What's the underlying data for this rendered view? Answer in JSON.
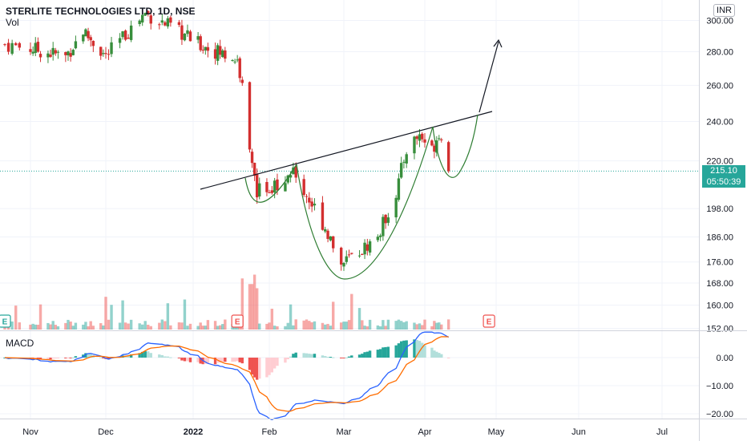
{
  "header": {
    "title": "STERLITE TECHNOLOGIES LTD, 1D, NSE",
    "volume_label": "Vol",
    "macd_label": "MACD",
    "currency": "INR"
  },
  "price_badge": {
    "price": "215.10",
    "countdown": "05:50:39",
    "color": "#26a69a"
  },
  "colors": {
    "up": "#26a69a",
    "down": "#ef5350",
    "up_candle": "#388e3c",
    "down_candle": "#d32f2f",
    "macd_line": "#2962ff",
    "signal_line": "#ff6d00",
    "drawing": "#2e7d32",
    "trendline": "#131722",
    "grid": "#f0f3fa"
  },
  "event_markers": [
    {
      "label": "E",
      "date": "2021-10-25",
      "color": "#26a69a"
    },
    {
      "label": "E",
      "date": "2022-01-19",
      "color": "#ef5350"
    },
    {
      "label": "E",
      "date": "2022-04-28",
      "color": "#ef5350"
    }
  ],
  "chart_data": [
    {
      "type": "candlestick",
      "panel": "price",
      "scale": "log",
      "y_ticks": [
        300,
        280,
        260,
        240,
        220,
        198,
        186,
        176,
        168,
        160,
        152
      ],
      "ylim": [
        150,
        310
      ],
      "x_ticks": [
        "Nov",
        "Dec",
        "2022",
        "Feb",
        "Mar",
        "Apr",
        "May",
        "Jun",
        "Jul"
      ],
      "last_price": 215.1,
      "series": [
        {
          "date": "2021-11-01",
          "close": 282
        },
        {
          "date": "2021-11-15",
          "close": 277
        },
        {
          "date": "2021-11-22",
          "close": 293
        },
        {
          "date": "2021-12-01",
          "close": 277
        },
        {
          "date": "2021-12-15",
          "close": 305
        },
        {
          "date": "2022-01-03",
          "close": 285
        },
        {
          "date": "2022-01-19",
          "close": 275
        },
        {
          "date": "2022-01-21",
          "close": 258
        },
        {
          "date": "2022-01-24",
          "close": 228
        },
        {
          "date": "2022-01-27",
          "close": 206
        },
        {
          "date": "2022-02-03",
          "close": 209
        },
        {
          "date": "2022-02-10",
          "close": 214
        },
        {
          "date": "2022-02-16",
          "close": 202
        },
        {
          "date": "2022-02-22",
          "close": 190
        },
        {
          "date": "2022-02-28",
          "close": 175
        },
        {
          "date": "2022-03-07",
          "close": 180
        },
        {
          "date": "2022-03-14",
          "close": 186
        },
        {
          "date": "2022-03-21",
          "close": 205
        },
        {
          "date": "2022-03-25",
          "close": 226
        },
        {
          "date": "2022-03-30",
          "close": 233
        },
        {
          "date": "2022-04-04",
          "close": 225
        },
        {
          "date": "2022-04-07",
          "close": 235
        },
        {
          "date": "2022-04-11",
          "close": 215
        }
      ]
    },
    {
      "type": "bar",
      "panel": "volume",
      "note_up_color": "#26a69a",
      "note_down_color": "#ef5350"
    },
    {
      "type": "line",
      "panel": "macd",
      "y_ticks": [
        0,
        -10,
        -20
      ],
      "ylim": [
        -21,
        7.5
      ]
    }
  ]
}
